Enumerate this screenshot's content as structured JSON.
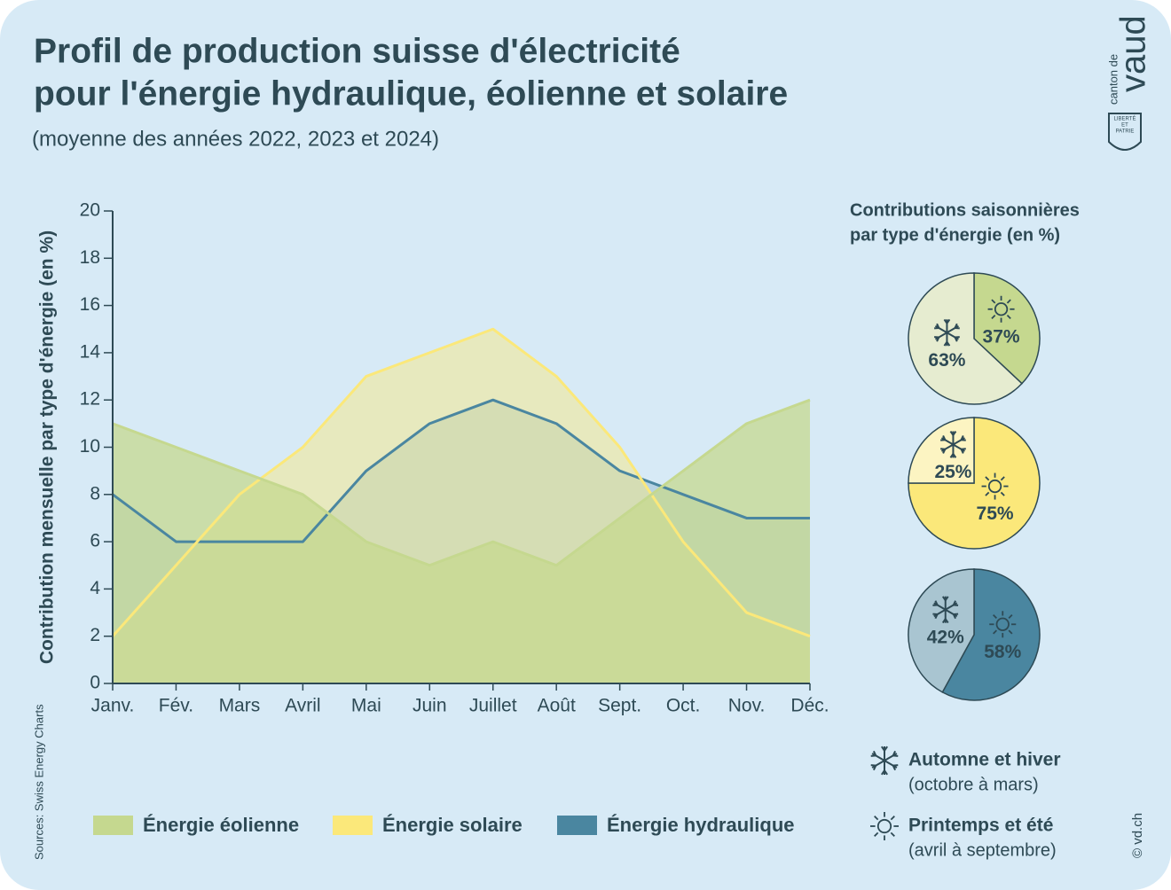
{
  "header": {
    "title": [
      "Profil de production suisse d'électricité",
      "pour l'énergie hydraulique, éolienne et solaire"
    ],
    "subtitle": "(moyenne des années 2022, 2023 et 2024)"
  },
  "logo": {
    "prefix": "canton de",
    "name": "vaud",
    "motto": [
      "LIBERTÉ",
      "ET",
      "PATRIE"
    ]
  },
  "source": "Sources: Swiss Energy Charts",
  "copyright": "© vd.ch",
  "chart_data": [
    {
      "type": "area",
      "ylabel": "Contribution mensuelle par type d'énergie (en %)",
      "categories": [
        "Janv.",
        "Fév.",
        "Mars",
        "Avril",
        "Mai",
        "Juin",
        "Juillet",
        "Août",
        "Sept.",
        "Oct.",
        "Nov.",
        "Déc."
      ],
      "series": [
        {
          "name": "Énergie hydraulique",
          "color": "#4a86a0",
          "values": [
            8,
            6,
            6,
            6,
            9,
            11,
            12,
            11,
            9,
            8,
            7,
            7
          ]
        },
        {
          "name": "Énergie solaire",
          "color": "#fbe87a",
          "values": [
            2,
            5,
            8,
            10,
            13,
            14,
            15,
            13,
            10,
            6,
            3,
            2
          ]
        },
        {
          "name": "Énergie éolienne",
          "color": "#c5d88f",
          "values": [
            11,
            10,
            9,
            8,
            6,
            5,
            6,
            5,
            7,
            9,
            11,
            12
          ]
        }
      ],
      "ylim": [
        0,
        20
      ],
      "yticks": [
        0,
        2,
        4,
        6,
        8,
        10,
        12,
        14,
        16,
        18,
        20
      ],
      "legend": "bottom"
    },
    {
      "type": "pie",
      "title": [
        "Contributions saisonnières",
        "par type d'énergie (en %)"
      ],
      "categories": [
        "Automne et hiver",
        "Printemps et été"
      ],
      "category_notes": [
        "(octobre à mars)",
        "(avril à septembre)"
      ],
      "series": [
        {
          "colors": [
            "#e6ecd0",
            "#c5d88f"
          ],
          "values": [
            63,
            37
          ],
          "value_labels": [
            "63%",
            "37%"
          ]
        },
        {
          "colors": [
            "#fcf4c2",
            "#fbe87a"
          ],
          "values": [
            25,
            75
          ],
          "value_labels": [
            "25%",
            "75%"
          ]
        },
        {
          "colors": [
            "#a9c5d1",
            "#4a86a0"
          ],
          "values": [
            42,
            58
          ],
          "value_labels": [
            "42%",
            "58%"
          ]
        }
      ]
    }
  ]
}
